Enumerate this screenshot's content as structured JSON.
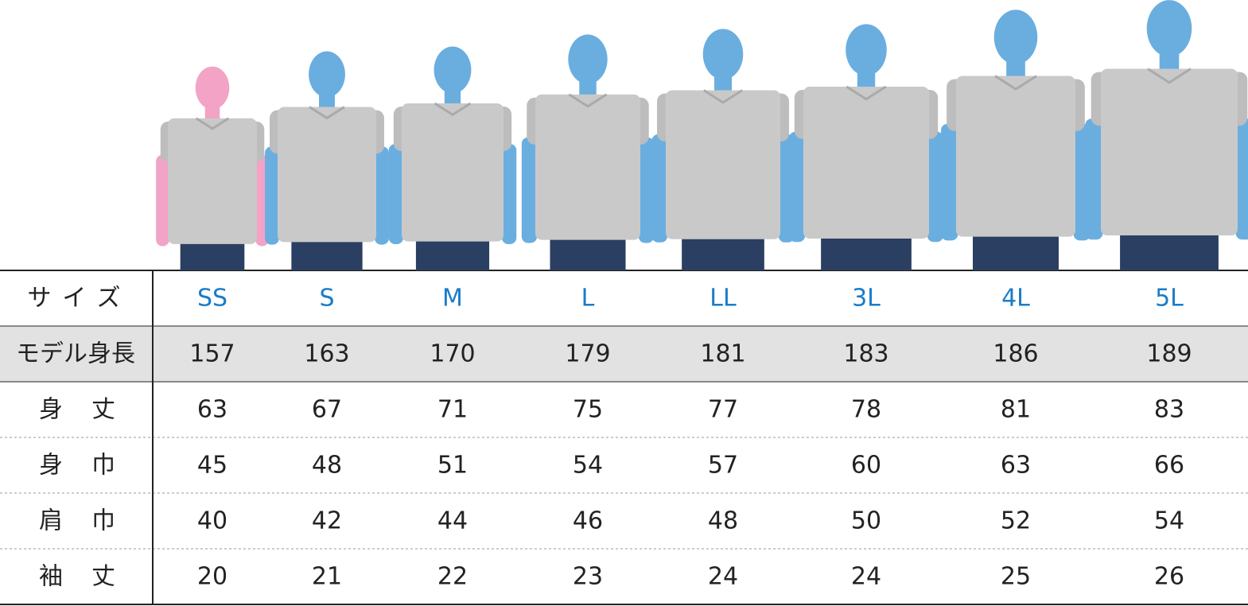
{
  "table": {
    "header": {
      "label": "サイズ",
      "sizes": [
        "SS",
        "S",
        "M",
        "L",
        "LL",
        "3L",
        "4L",
        "5L"
      ]
    },
    "rows": [
      {
        "label": "モデル身長",
        "values": [
          157,
          163,
          170,
          179,
          181,
          183,
          186,
          189
        ]
      },
      {
        "label": "身丈",
        "values": [
          63,
          67,
          71,
          75,
          77,
          78,
          81,
          83
        ]
      },
      {
        "label": "身巾",
        "values": [
          45,
          48,
          51,
          54,
          57,
          60,
          63,
          66
        ]
      },
      {
        "label": "肩巾",
        "values": [
          40,
          42,
          44,
          46,
          48,
          50,
          52,
          54
        ]
      },
      {
        "label": "袖丈",
        "values": [
          20,
          21,
          22,
          23,
          24,
          24,
          25,
          26
        ]
      }
    ]
  }
}
